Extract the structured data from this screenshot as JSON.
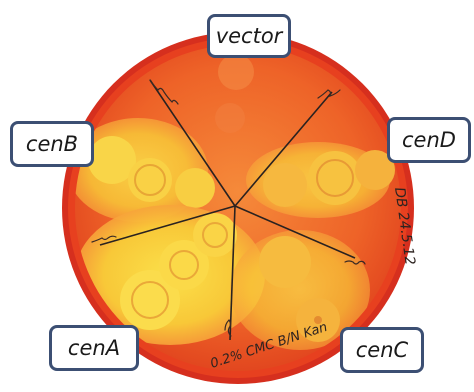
{
  "labels": {
    "vector": "vector",
    "cenB": "cenB",
    "cenD": "cenD",
    "cenA": "cenA",
    "cenC": "cenC"
  },
  "plate_markings": {
    "vector_sector": "pSG413",
    "cenD_sector": "cenD",
    "cenB_sector": "cenB",
    "cenC_sector": "cenC",
    "cenA_sector": "cenA",
    "rim_right": "DB 24.5.12",
    "rim_bottom": "0.2% CMC B/N Kan"
  },
  "colors": {
    "plate_rim": "#c8211a",
    "agar": "#f06a2a",
    "halo": "#f8d23a",
    "label_border": "#3c4f73"
  }
}
